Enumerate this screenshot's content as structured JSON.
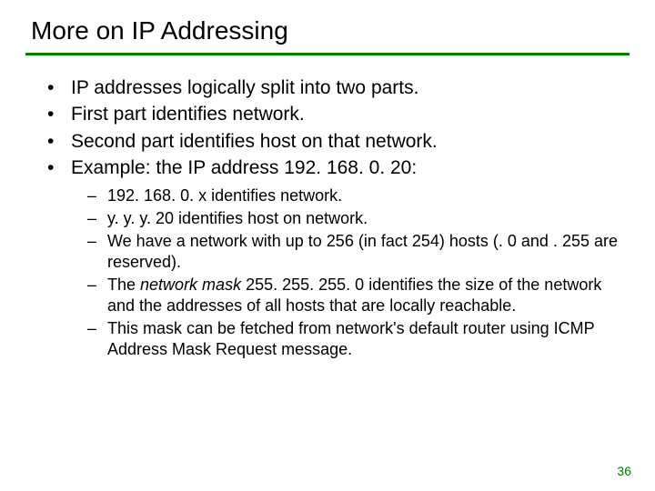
{
  "colors": {
    "rule": "#008000",
    "pagenum": "#008000",
    "text": "#000000",
    "background": "#ffffff"
  },
  "title": "More on IP Addressing",
  "bullets": [
    "IP addresses logically split into two parts.",
    "First part identifies network.",
    "Second part identifies host on that network.",
    "Example: the IP address 192. 168. 0. 20:"
  ],
  "subbullets": {
    "s0": "192. 168. 0. x identifies network.",
    "s1": "y. y. y. 20 identifies host on network.",
    "s2": "We have a network with up to 256 (in fact 254) hosts (. 0 and . 255 are reserved).",
    "s3_pre": "The ",
    "s3_italic": "network mask",
    "s3_post": " 255. 255. 255. 0 identifies the size of the network and the addresses of all hosts that are locally reachable.",
    "s4": "This mask can be fetched from network's default router using ICMP Address Mask Request message."
  },
  "pagenum": "36"
}
